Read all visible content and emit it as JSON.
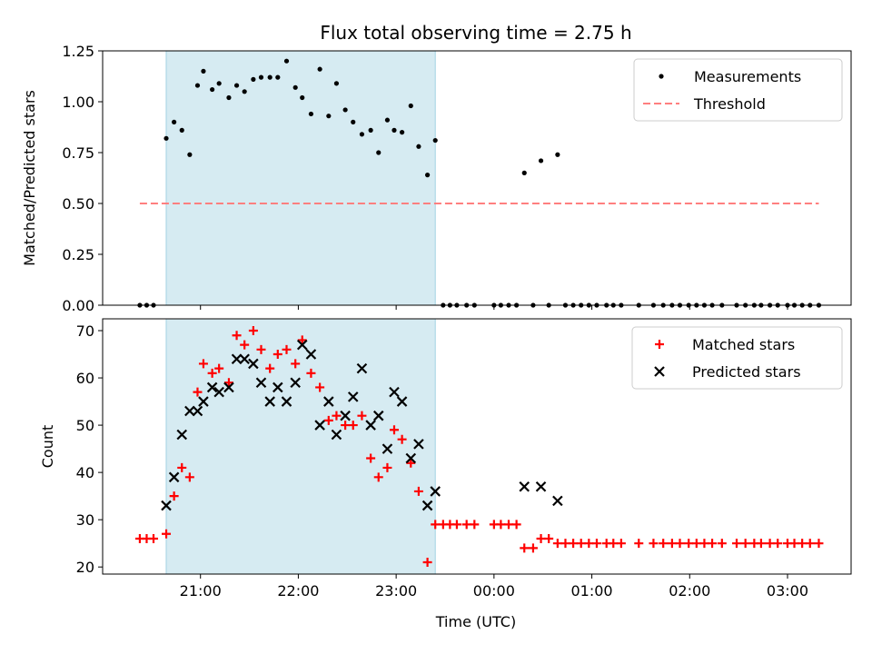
{
  "chart_data": {
    "type": "scatter",
    "title": "Flux total observing time = 2.75 h",
    "xlabel": "Time (UTC)",
    "xticks": [
      "21:00",
      "22:00",
      "23:00",
      "00:00",
      "01:00",
      "02:00",
      "03:00"
    ],
    "xlim_hours": [
      20.0,
      27.65
    ],
    "shaded_window_hours": [
      20.65,
      23.4
    ],
    "shaded_color": "#add8e6",
    "panels": [
      {
        "ylabel": "Matched/Predicted stars",
        "ylim": [
          0,
          1.25
        ],
        "yticks": [
          "0.00",
          "0.25",
          "0.50",
          "0.75",
          "1.00",
          "1.25"
        ],
        "series": [
          {
            "name": "Measurements",
            "marker": "dot",
            "color": "#000000",
            "x": [
              20.38,
              20.45,
              20.52,
              20.65,
              20.73,
              20.81,
              20.89,
              20.97,
              21.03,
              21.12,
              21.19,
              21.29,
              21.37,
              21.45,
              21.54,
              21.62,
              21.71,
              21.79,
              21.88,
              21.97,
              22.04,
              22.13,
              22.22,
              22.31,
              22.39,
              22.48,
              22.56,
              22.65,
              22.74,
              22.82,
              22.91,
              22.98,
              23.06,
              23.15,
              23.23,
              23.32,
              23.4,
              23.48,
              23.55,
              23.62,
              23.72,
              23.8,
              24.0,
              24.07,
              24.15,
              24.23,
              24.4,
              24.56,
              24.73,
              24.81,
              24.89,
              24.97,
              25.05,
              25.15,
              25.22,
              25.3,
              25.48,
              25.63,
              25.73,
              25.82,
              25.9,
              25.99,
              26.07,
              26.15,
              26.23,
              26.33,
              26.48,
              26.57,
              26.66,
              26.73,
              26.82,
              26.9,
              27.0,
              27.07,
              27.15,
              27.23,
              27.32,
              24.31,
              24.48,
              24.65
            ],
            "y": [
              0,
              0,
              0,
              0.82,
              0.9,
              0.86,
              0.74,
              1.08,
              1.15,
              1.06,
              1.09,
              1.02,
              1.08,
              1.05,
              1.11,
              1.12,
              1.12,
              1.12,
              1.2,
              1.07,
              1.02,
              0.94,
              1.16,
              0.93,
              1.09,
              0.96,
              0.9,
              0.84,
              0.86,
              0.75,
              0.91,
              0.86,
              0.85,
              0.98,
              0.78,
              0.64,
              0.81,
              0,
              0,
              0,
              0,
              0,
              0,
              0,
              0,
              0,
              0,
              0,
              0,
              0,
              0,
              0,
              0,
              0,
              0,
              0,
              0,
              0,
              0,
              0,
              0,
              0,
              0,
              0,
              0,
              0,
              0,
              0,
              0,
              0,
              0,
              0,
              0,
              0,
              0,
              0,
              0,
              0.65,
              0.71,
              0.74
            ]
          },
          {
            "name": "Threshold",
            "marker": "dashed-line",
            "color": "#ff7f7f",
            "x": [
              20.38,
              27.32
            ],
            "y": [
              0.5,
              0.5
            ]
          }
        ],
        "legend_position": "top-right"
      },
      {
        "ylabel": "Count",
        "ylim": [
          18.5,
          72.5
        ],
        "yticks": [
          "20",
          "30",
          "40",
          "50",
          "60",
          "70"
        ],
        "series": [
          {
            "name": "Matched stars",
            "marker": "plus",
            "color": "#ff0000",
            "x": [
              20.38,
              20.45,
              20.52,
              20.65,
              20.73,
              20.81,
              20.89,
              20.97,
              21.03,
              21.12,
              21.19,
              21.29,
              21.37,
              21.45,
              21.54,
              21.62,
              21.71,
              21.79,
              21.88,
              21.97,
              22.04,
              22.13,
              22.22,
              22.31,
              22.39,
              22.48,
              22.56,
              22.65,
              22.74,
              22.82,
              22.91,
              22.98,
              23.06,
              23.15,
              23.23,
              23.32,
              23.4,
              23.48,
              23.55,
              23.62,
              23.72,
              23.8,
              24.0,
              24.07,
              24.15,
              24.23,
              24.31,
              24.4,
              24.48,
              24.56,
              24.65,
              24.73,
              24.81,
              24.89,
              24.97,
              25.05,
              25.15,
              25.22,
              25.3,
              25.48,
              25.63,
              25.73,
              25.82,
              25.9,
              25.99,
              26.07,
              26.15,
              26.23,
              26.33,
              26.48,
              26.57,
              26.66,
              26.73,
              26.82,
              26.9,
              27.0,
              27.07,
              27.15,
              27.23,
              27.32
            ],
            "y": [
              26,
              26,
              26,
              27,
              35,
              41,
              39,
              57,
              63,
              61,
              62,
              59,
              69,
              67,
              70,
              66,
              62,
              65,
              66,
              63,
              68,
              61,
              58,
              51,
              52,
              50,
              50,
              52,
              43,
              39,
              41,
              49,
              47,
              42,
              36,
              21,
              29,
              29,
              29,
              29,
              29,
              29,
              29,
              29,
              29,
              29,
              24,
              24,
              26,
              26,
              25,
              25,
              25,
              25,
              25,
              25,
              25,
              25,
              25,
              25,
              25,
              25,
              25,
              25,
              25,
              25,
              25,
              25,
              25,
              25,
              25,
              25,
              25,
              25,
              25,
              25,
              25,
              25,
              25,
              25
            ]
          },
          {
            "name": "Predicted stars",
            "marker": "x",
            "color": "#000000",
            "x": [
              20.65,
              20.73,
              20.81,
              20.89,
              20.97,
              21.03,
              21.12,
              21.19,
              21.29,
              21.37,
              21.45,
              21.54,
              21.62,
              21.71,
              21.79,
              21.88,
              21.97,
              22.04,
              22.13,
              22.22,
              22.31,
              22.39,
              22.48,
              22.56,
              22.65,
              22.74,
              22.82,
              22.91,
              22.98,
              23.06,
              23.15,
              23.23,
              23.32,
              23.4,
              24.31,
              24.48,
              24.65
            ],
            "y": [
              33,
              39,
              48,
              53,
              53,
              55,
              58,
              57,
              58,
              64,
              64,
              63,
              59,
              55,
              58,
              55,
              59,
              67,
              65,
              50,
              55,
              48,
              52,
              56,
              62,
              50,
              52,
              45,
              57,
              55,
              43,
              46,
              33,
              36,
              37,
              37,
              34
            ]
          }
        ],
        "legend_position": "top-right"
      }
    ]
  }
}
